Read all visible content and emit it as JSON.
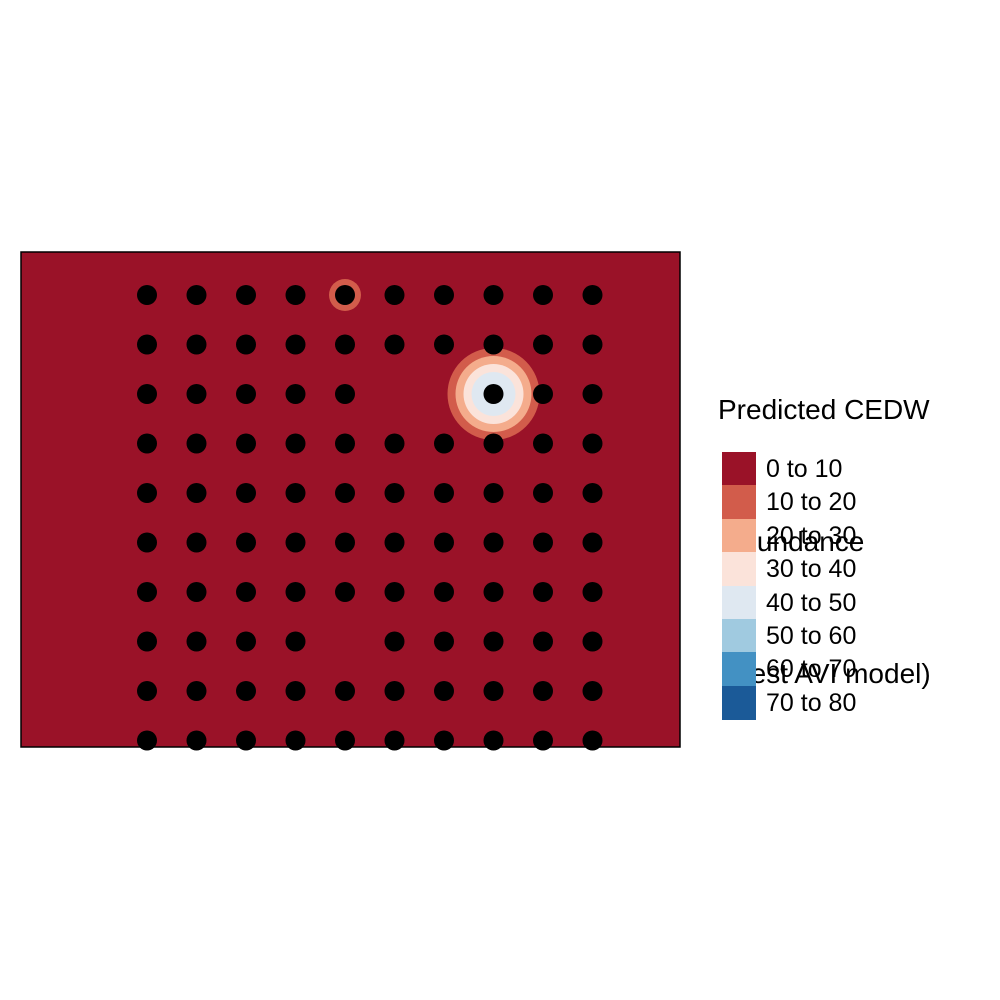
{
  "legend": {
    "title_lines": [
      "Predicted CEDW",
      " abundance",
      " (best AVI model)"
    ],
    "items": [
      {
        "label": "0 to 10",
        "color": "#9a1228"
      },
      {
        "label": "10 to 20",
        "color": "#d25c4b"
      },
      {
        "label": "20 to 30",
        "color": "#f4ac8c"
      },
      {
        "label": "30 to 40",
        "color": "#fbe3da"
      },
      {
        "label": "40 to 50",
        "color": "#dfe8f1"
      },
      {
        "label": "50 to 60",
        "color": "#a0cae0"
      },
      {
        "label": "60 to 70",
        "color": "#4391c3"
      },
      {
        "label": "70 to 80",
        "color": "#1b5a98"
      }
    ]
  },
  "map": {
    "background_class": "0 to 10",
    "hotspots": [
      {
        "site": [
          4,
          0
        ],
        "levels": [
          "10 to 20"
        ]
      },
      {
        "site": [
          7,
          2
        ],
        "levels": [
          "10 to 20",
          "20 to 30",
          "30 to 40",
          "40 to 50"
        ]
      }
    ],
    "survey_sites": {
      "columns": 10,
      "rows": 10,
      "missing": [
        [
          5,
          2
        ],
        [
          6,
          2
        ],
        [
          4,
          7
        ]
      ]
    }
  }
}
